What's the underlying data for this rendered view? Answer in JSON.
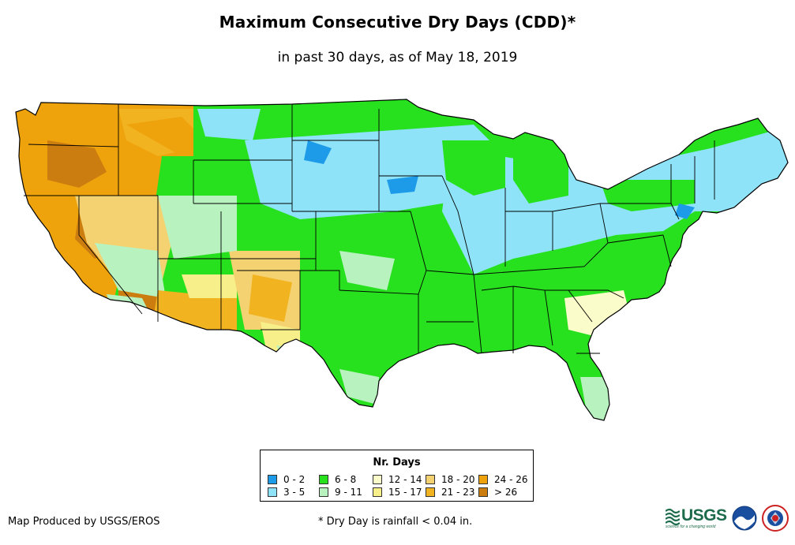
{
  "title": "Maximum Consecutive Dry Days (CDD)*",
  "subtitle": "in past 30 days, as of May 18, 2019",
  "legend": {
    "title": "Nr. Days",
    "items": [
      {
        "label": "0 - 2",
        "color": "#1e9be8"
      },
      {
        "label": "3 - 5",
        "color": "#8ee3f8"
      },
      {
        "label": "6 - 8",
        "color": "#27e01e"
      },
      {
        "label": "9 - 11",
        "color": "#b7f2bf"
      },
      {
        "label": "12 - 14",
        "color": "#fafdc9"
      },
      {
        "label": "15 - 17",
        "color": "#f7f08a"
      },
      {
        "label": "18 - 20",
        "color": "#f4d271"
      },
      {
        "label": "21 - 23",
        "color": "#f2b321"
      },
      {
        "label": "24 - 26",
        "color": "#eea20c"
      },
      {
        "label": "> 26",
        "color": "#cc7d10"
      }
    ]
  },
  "footer": {
    "producer": "Map Produced by USGS/EROS",
    "note": "* Dry Day is rainfall < 0.04 in."
  },
  "logos": {
    "usgs": "USGS",
    "usgs_tagline": "science for a changing world"
  }
}
